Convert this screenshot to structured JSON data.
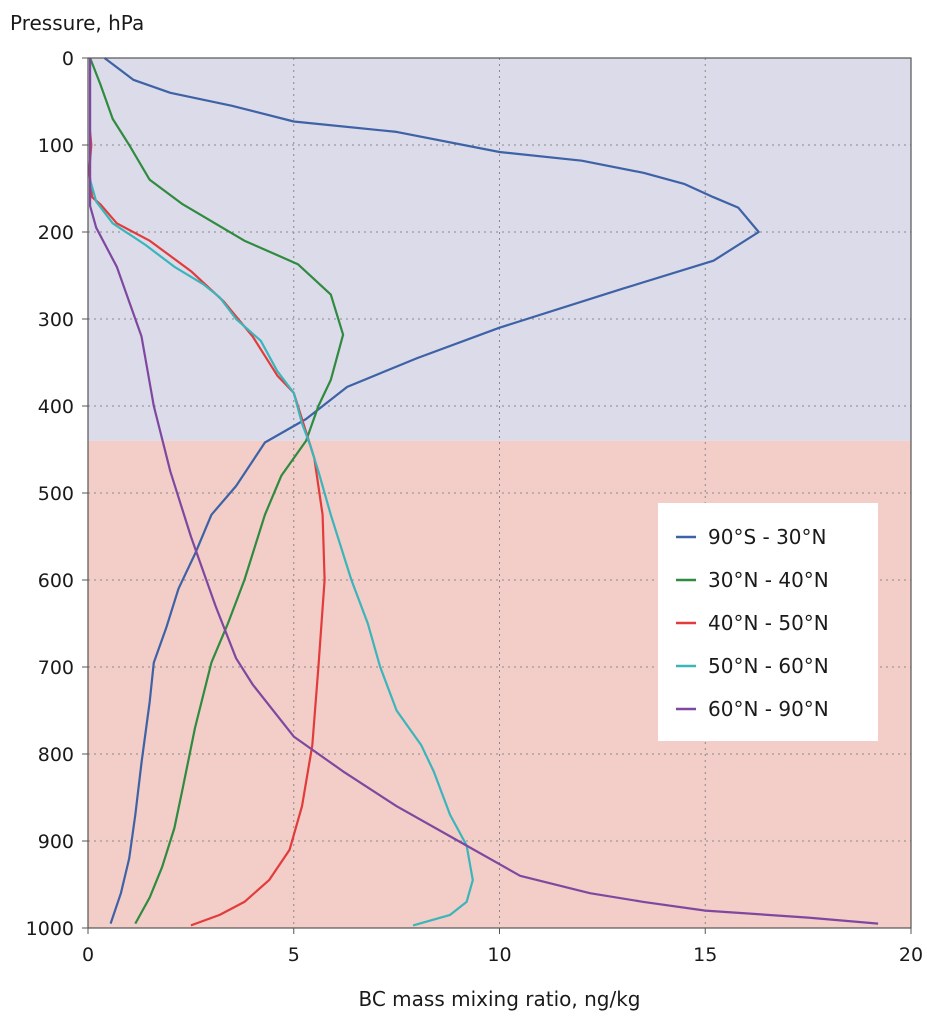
{
  "chart_data": {
    "type": "line",
    "ylabel": "Pressure, hPa",
    "xlabel": "BC mass mixing ratio, ng/kg",
    "xlim": [
      0,
      20
    ],
    "ylim": [
      1000,
      0
    ],
    "y_inverted": true,
    "xticks": [
      0,
      5,
      10,
      15,
      20
    ],
    "yticks": [
      0,
      100,
      200,
      300,
      400,
      500,
      600,
      700,
      800,
      900,
      1000
    ],
    "grid": "dotted",
    "legend_position": "right",
    "regions": [
      {
        "y_from": 0,
        "y_to": 440,
        "color": "#dcdbe9"
      },
      {
        "y_from": 440,
        "y_to": 1000,
        "color": "#f3cdc7"
      }
    ],
    "series": [
      {
        "name": "90°S - 30°N",
        "color": "#3d62a6",
        "points": [
          [
            0.4,
            0
          ],
          [
            1.1,
            25
          ],
          [
            2.0,
            40
          ],
          [
            3.5,
            55
          ],
          [
            5.0,
            73
          ],
          [
            7.5,
            85
          ],
          [
            10.0,
            108
          ],
          [
            12.0,
            118
          ],
          [
            13.5,
            132
          ],
          [
            14.5,
            145
          ],
          [
            15.2,
            160
          ],
          [
            15.8,
            172
          ],
          [
            16.3,
            200
          ],
          [
            15.2,
            233
          ],
          [
            13.0,
            265
          ],
          [
            10.0,
            310
          ],
          [
            8.0,
            345
          ],
          [
            6.3,
            378
          ],
          [
            5.3,
            415
          ],
          [
            4.3,
            442
          ],
          [
            3.6,
            492
          ],
          [
            3.0,
            525
          ],
          [
            2.6,
            570
          ],
          [
            2.2,
            610
          ],
          [
            1.9,
            655
          ],
          [
            1.6,
            695
          ],
          [
            1.5,
            740
          ],
          [
            1.3,
            810
          ],
          [
            1.15,
            870
          ],
          [
            1.0,
            920
          ],
          [
            0.8,
            960
          ],
          [
            0.55,
            995
          ]
        ]
      },
      {
        "name": "30°N - 40°N",
        "color": "#2e8b3f",
        "points": [
          [
            0.05,
            0
          ],
          [
            0.3,
            30
          ],
          [
            0.6,
            70
          ],
          [
            1.0,
            100
          ],
          [
            1.5,
            140
          ],
          [
            2.3,
            168
          ],
          [
            3.8,
            210
          ],
          [
            5.1,
            237
          ],
          [
            5.9,
            272
          ],
          [
            6.2,
            318
          ],
          [
            5.9,
            370
          ],
          [
            5.6,
            400
          ],
          [
            5.3,
            440
          ],
          [
            4.7,
            480
          ],
          [
            4.3,
            525
          ],
          [
            3.8,
            600
          ],
          [
            3.4,
            650
          ],
          [
            3.0,
            695
          ],
          [
            2.6,
            770
          ],
          [
            2.3,
            840
          ],
          [
            2.1,
            885
          ],
          [
            1.8,
            930
          ],
          [
            1.5,
            965
          ],
          [
            1.15,
            995
          ]
        ]
      },
      {
        "name": "40°N - 50°N",
        "color": "#e23b3b",
        "points": [
          [
            0.05,
            85
          ],
          [
            0.08,
            100
          ],
          [
            0.03,
            130
          ],
          [
            0.1,
            160
          ],
          [
            0.3,
            168
          ],
          [
            0.7,
            190
          ],
          [
            1.5,
            210
          ],
          [
            2.5,
            245
          ],
          [
            3.3,
            280
          ],
          [
            4.0,
            320
          ],
          [
            4.6,
            365
          ],
          [
            5.0,
            385
          ],
          [
            5.3,
            430
          ],
          [
            5.5,
            460
          ],
          [
            5.7,
            525
          ],
          [
            5.75,
            600
          ],
          [
            5.6,
            700
          ],
          [
            5.45,
            790
          ],
          [
            5.2,
            860
          ],
          [
            4.9,
            910
          ],
          [
            4.4,
            945
          ],
          [
            3.8,
            970
          ],
          [
            3.2,
            985
          ],
          [
            2.5,
            997
          ]
        ]
      },
      {
        "name": "50°N - 60°N",
        "color": "#3ab5bb",
        "points": [
          [
            0.05,
            140
          ],
          [
            0.2,
            165
          ],
          [
            0.6,
            190
          ],
          [
            1.4,
            215
          ],
          [
            2.1,
            240
          ],
          [
            2.8,
            260
          ],
          [
            3.2,
            275
          ],
          [
            3.6,
            300
          ],
          [
            4.2,
            325
          ],
          [
            4.6,
            360
          ],
          [
            5.0,
            385
          ],
          [
            5.2,
            420
          ],
          [
            5.4,
            445
          ],
          [
            5.6,
            475
          ],
          [
            5.9,
            525
          ],
          [
            6.4,
            600
          ],
          [
            6.8,
            650
          ],
          [
            7.1,
            700
          ],
          [
            7.5,
            750
          ],
          [
            8.1,
            790
          ],
          [
            8.4,
            820
          ],
          [
            8.8,
            870
          ],
          [
            9.2,
            905
          ],
          [
            9.35,
            945
          ],
          [
            9.2,
            970
          ],
          [
            8.8,
            985
          ],
          [
            7.9,
            997
          ]
        ]
      },
      {
        "name": "60°N - 90°N",
        "color": "#7e48a0",
        "points": [
          [
            0.05,
            0
          ],
          [
            0.05,
            170
          ],
          [
            0.2,
            195
          ],
          [
            0.7,
            240
          ],
          [
            1.3,
            320
          ],
          [
            1.6,
            400
          ],
          [
            2.0,
            475
          ],
          [
            2.5,
            550
          ],
          [
            3.1,
            630
          ],
          [
            3.6,
            690
          ],
          [
            4.0,
            720
          ],
          [
            5.0,
            780
          ],
          [
            6.2,
            820
          ],
          [
            7.5,
            860
          ],
          [
            9.0,
            900
          ],
          [
            10.5,
            940
          ],
          [
            12.2,
            960
          ],
          [
            13.5,
            970
          ],
          [
            15.0,
            980
          ],
          [
            17.5,
            988
          ],
          [
            19.2,
            995
          ]
        ]
      }
    ]
  }
}
